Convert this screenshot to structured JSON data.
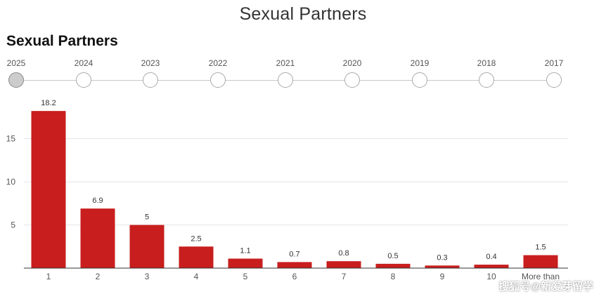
{
  "page_title": "Sexual Partners",
  "chart_title": "Sexual Partners",
  "years": [
    "2025",
    "2024",
    "2023",
    "2022",
    "2021",
    "2020",
    "2019",
    "2018",
    "2017"
  ],
  "selected_year": "2025",
  "watermark": "搜狐号@新爱芽留学",
  "colors": {
    "bar": "#c81e1e",
    "grid": "#e6e6e6",
    "axis": "#333333"
  },
  "chart_data": {
    "type": "bar",
    "title": "Sexual Partners",
    "xlabel": "",
    "ylabel": "",
    "categories": [
      "1",
      "2",
      "3",
      "4",
      "5",
      "6",
      "7",
      "8",
      "9",
      "10",
      "More than"
    ],
    "values": [
      18.2,
      6.9,
      5,
      2.5,
      1.1,
      0.7,
      0.8,
      0.5,
      0.3,
      0.4,
      1.5
    ],
    "value_labels": [
      "18.2",
      "6.9",
      "5",
      "2.5",
      "1.1",
      "0.7",
      "0.8",
      "0.5",
      "0.3",
      "0.4",
      "1.5"
    ],
    "yticks": [
      5,
      10,
      15
    ],
    "ylim": [
      0,
      20
    ],
    "grid": true
  }
}
